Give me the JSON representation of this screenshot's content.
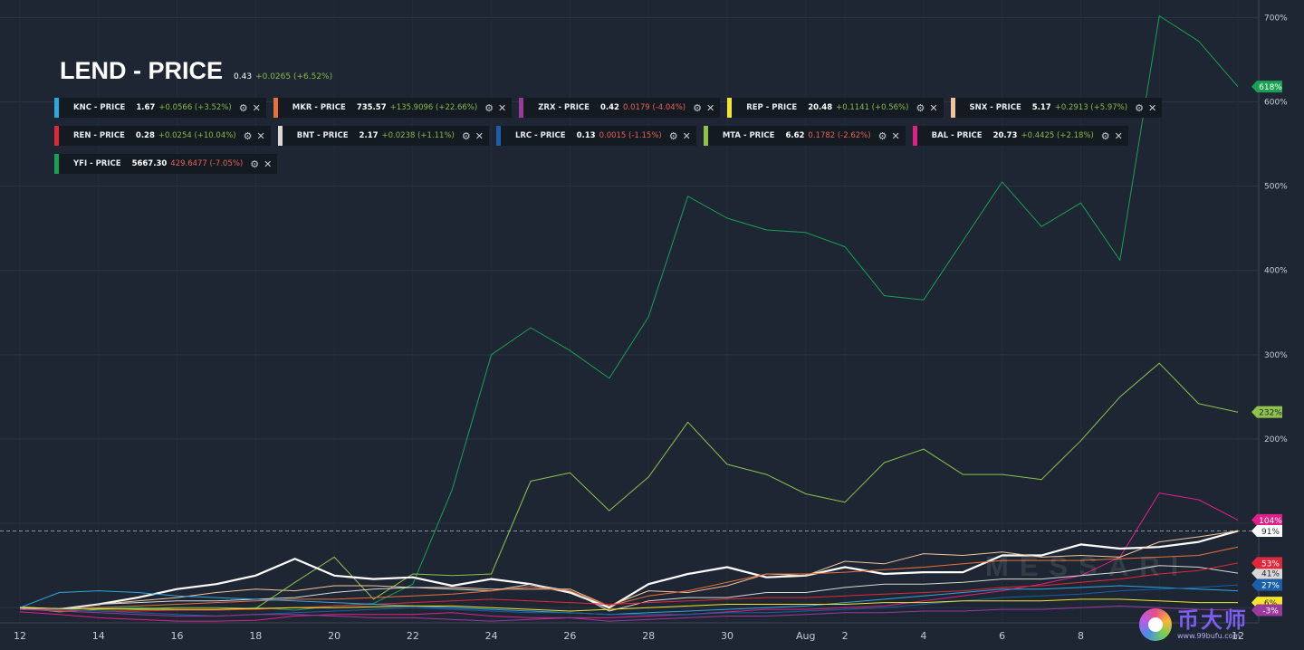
{
  "header": {
    "title": "LEND - PRICE",
    "value": "0.43",
    "change": "+0.0265 (+6.52%)"
  },
  "legend": [
    [
      {
        "name": "KNC - PRICE",
        "value": "1.67",
        "change": "+0.0566 (+3.52%)",
        "dir": "up",
        "color": "#2ea7e0"
      },
      {
        "name": "MKR - PRICE",
        "value": "735.57",
        "change": "+135.9096 (+22.66%)",
        "dir": "up",
        "color": "#e8703a"
      },
      {
        "name": "ZRX - PRICE",
        "value": "0.42",
        "change": "0.0179 (-4.04%)",
        "dir": "down",
        "color": "#9a3a9a"
      },
      {
        "name": "REP - PRICE",
        "value": "20.48",
        "change": "+0.1141 (+0.56%)",
        "dir": "up",
        "color": "#f5e52a"
      },
      {
        "name": "SNX - PRICE",
        "value": "5.17",
        "change": "+0.2913 (+5.97%)",
        "dir": "up",
        "color": "#f2c49a"
      }
    ],
    [
      {
        "name": "REN - PRICE",
        "value": "0.28",
        "change": "+0.0254 (+10.04%)",
        "dir": "up",
        "color": "#e0283a"
      },
      {
        "name": "BNT - PRICE",
        "value": "2.17",
        "change": "+0.0238 (+1.11%)",
        "dir": "up",
        "color": "#d8d8d8"
      },
      {
        "name": "LRC - PRICE",
        "value": "0.13",
        "change": "0.0015 (-1.15%)",
        "dir": "down",
        "color": "#1a5fa8"
      },
      {
        "name": "MTA - PRICE",
        "value": "6.62",
        "change": "0.1782 (-2.62%)",
        "dir": "down",
        "color": "#8fc24a"
      },
      {
        "name": "BAL - PRICE",
        "value": "20.73",
        "change": "+0.4425 (+2.18%)",
        "dir": "up",
        "color": "#e0208a"
      }
    ],
    [
      {
        "name": "YFI - PRICE",
        "value": "5667.30",
        "change": "429.6477 (-7.05%)",
        "dir": "down",
        "color": "#1aa055"
      }
    ]
  ],
  "chart_data": {
    "type": "line",
    "xlabel": "",
    "ylabel": "",
    "x": [
      "12",
      "13",
      "14",
      "15",
      "16",
      "17",
      "18",
      "19",
      "20",
      "21",
      "22",
      "23",
      "24",
      "25",
      "26",
      "27",
      "28",
      "29",
      "30",
      "31",
      "Aug",
      "2",
      "3",
      "4",
      "5",
      "6",
      "7",
      "8",
      "9",
      "10",
      "11",
      "12"
    ],
    "x_tick_labels": [
      "12",
      "14",
      "16",
      "18",
      "20",
      "22",
      "24",
      "26",
      "28",
      "30",
      "Aug",
      "2",
      "4",
      "6",
      "8",
      "10",
      "12"
    ],
    "y_tick_labels": [
      "200%",
      "300%",
      "400%",
      "500%",
      "600%",
      "700%"
    ],
    "ylim": [
      -18,
      710
    ],
    "baseline_ref": 100,
    "grid": true,
    "series": [
      {
        "name": "YFI - PRICE",
        "color": "#1aa055",
        "width": 1,
        "end_label": "618%",
        "values": [
          0,
          -3,
          0,
          0,
          -2,
          -3,
          0,
          -3,
          2,
          5,
          28,
          140,
          300,
          332,
          305,
          272,
          345,
          488,
          462,
          448,
          445,
          428,
          370,
          365,
          435,
          505,
          452,
          480,
          412,
          702,
          672,
          618
        ]
      },
      {
        "name": "MTA - PRICE",
        "color": "#8fc24a",
        "width": 1,
        "end_label": "232%",
        "values": [
          0,
          -5,
          -2,
          -1,
          0,
          0,
          -1,
          30,
          60,
          10,
          40,
          38,
          40,
          150,
          160,
          115,
          155,
          220,
          170,
          158,
          135,
          125,
          172,
          188,
          158,
          158,
          152,
          198,
          250,
          290,
          242,
          232
        ]
      },
      {
        "name": "BAL - PRICE",
        "color": "#e0208a",
        "width": 1,
        "end_label": "104%",
        "values": [
          -5,
          -8,
          -12,
          -14,
          -16,
          -16,
          -15,
          -10,
          -8,
          -8,
          -8,
          -6,
          -10,
          -12,
          -12,
          -12,
          -10,
          -8,
          -5,
          -2,
          -2,
          0,
          2,
          8,
          14,
          20,
          28,
          38,
          60,
          136,
          128,
          104
        ]
      },
      {
        "name": "LEND - PRICE",
        "color": "#ffffff",
        "width": 2.2,
        "end_label": "91%",
        "values": [
          0,
          -2,
          4,
          12,
          22,
          28,
          38,
          58,
          38,
          34,
          36,
          26,
          34,
          28,
          18,
          0,
          28,
          40,
          48,
          36,
          38,
          48,
          40,
          42,
          42,
          62,
          62,
          75,
          70,
          72,
          78,
          91
        ]
      },
      {
        "name": "SNX - PRICE",
        "color": "#f2c49a",
        "width": 1,
        "end_label": "",
        "values": [
          0,
          -3,
          4,
          8,
          12,
          18,
          22,
          20,
          26,
          26,
          24,
          24,
          22,
          22,
          22,
          2,
          20,
          18,
          26,
          40,
          38,
          55,
          52,
          64,
          62,
          66,
          60,
          62,
          60,
          78,
          84,
          91
        ]
      },
      {
        "name": "BNT - PRICE",
        "color": "#d8d8d8",
        "width": 1,
        "end_label": "41%",
        "values": [
          0,
          -2,
          4,
          6,
          8,
          8,
          10,
          12,
          18,
          22,
          24,
          22,
          20,
          28,
          20,
          -4,
          8,
          12,
          12,
          18,
          18,
          24,
          28,
          28,
          30,
          34,
          34,
          38,
          42,
          50,
          48,
          41
        ]
      },
      {
        "name": "MKR - PRICE",
        "color": "#e8703a",
        "width": 1,
        "end_label": "",
        "values": [
          0,
          -2,
          0,
          2,
          4,
          6,
          8,
          10,
          10,
          12,
          14,
          16,
          20,
          25,
          20,
          2,
          14,
          20,
          30,
          40,
          40,
          42,
          45,
          48,
          52,
          56,
          56,
          56,
          58,
          60,
          62,
          72
        ]
      },
      {
        "name": "REN - PRICE",
        "color": "#e0283a",
        "width": 1,
        "end_label": "53%",
        "values": [
          -2,
          -3,
          -4,
          -4,
          -3,
          -3,
          -2,
          0,
          2,
          4,
          6,
          8,
          10,
          8,
          6,
          4,
          6,
          8,
          10,
          12,
          12,
          14,
          16,
          18,
          20,
          24,
          26,
          30,
          34,
          40,
          44,
          53
        ]
      },
      {
        "name": "KNC - PRICE",
        "color": "#2ea7e0",
        "width": 1,
        "end_label": "",
        "values": [
          0,
          18,
          20,
          18,
          14,
          12,
          10,
          8,
          6,
          4,
          2,
          0,
          -2,
          -4,
          -6,
          -8,
          -6,
          -4,
          -2,
          0,
          2,
          6,
          10,
          14,
          18,
          22,
          22,
          24,
          26,
          24,
          22,
          20
        ]
      },
      {
        "name": "LRC - PRICE",
        "color": "#1a5fa8",
        "width": 1,
        "end_label": "27%",
        "values": [
          0,
          -2,
          -4,
          -6,
          -8,
          -10,
          -8,
          -6,
          -4,
          -2,
          0,
          -2,
          -4,
          -6,
          -6,
          -8,
          -8,
          -8,
          -6,
          -6,
          -4,
          -2,
          0,
          4,
          8,
          12,
          14,
          16,
          20,
          22,
          24,
          27
        ]
      },
      {
        "name": "REP - PRICE",
        "color": "#f5e52a",
        "width": 1,
        "end_label": "6%",
        "values": [
          0,
          -1,
          -1,
          -2,
          -2,
          -2,
          -1,
          0,
          0,
          1,
          2,
          2,
          0,
          -2,
          -4,
          -2,
          0,
          2,
          4,
          4,
          4,
          4,
          6,
          6,
          8,
          8,
          8,
          10,
          10,
          8,
          6,
          6
        ]
      },
      {
        "name": "ZRX - PRICE",
        "color": "#9a3a9a",
        "width": 1,
        "end_label": "-3%",
        "values": [
          -2,
          -4,
          -6,
          -8,
          -10,
          -10,
          -8,
          -8,
          -10,
          -12,
          -12,
          -14,
          -16,
          -14,
          -12,
          -16,
          -14,
          -12,
          -10,
          -10,
          -8,
          -6,
          -6,
          -4,
          -4,
          -2,
          -2,
          0,
          2,
          0,
          -2,
          -3
        ]
      }
    ]
  }
}
